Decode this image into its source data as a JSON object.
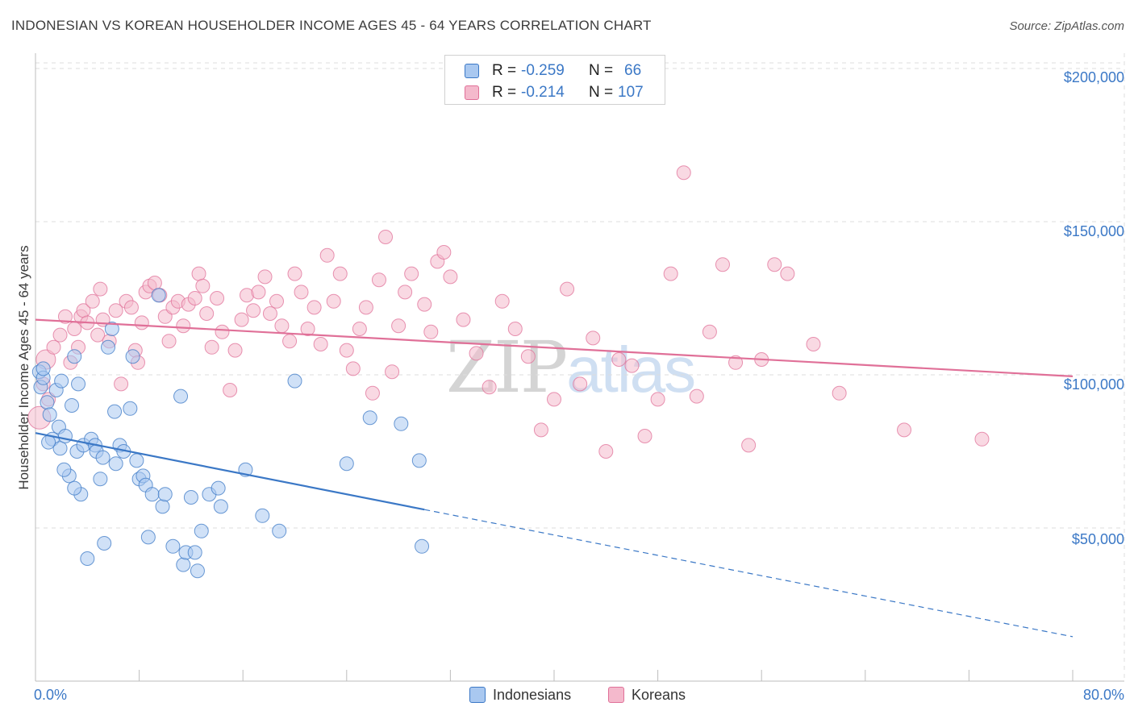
{
  "title": "INDONESIAN VS KOREAN HOUSEHOLDER INCOME AGES 45 - 64 YEARS CORRELATION CHART",
  "source": "Source: ZipAtlas.com",
  "watermark": {
    "zip": "ZIP",
    "atlas": "atlas"
  },
  "stats": {
    "indonesians": {
      "r_label": "R =",
      "r": "-0.259",
      "n_label": "N =",
      "n": "66",
      "color": "#a9c8f0"
    },
    "koreans": {
      "r_label": "R =",
      "r": "-0.214",
      "n_label": "N =",
      "n": "107",
      "color": "#f4b9cc"
    }
  },
  "legend": {
    "indonesians": "Indonesians",
    "koreans": "Koreans"
  },
  "chart_data": {
    "type": "scatter",
    "title": "INDONESIAN VS KOREAN HOUSEHOLDER INCOME AGES 45 - 64 YEARS CORRELATION CHART",
    "xlabel": "",
    "ylabel": "Householder Income Ages 45 - 64 years",
    "xlim": [
      0,
      80
    ],
    "ylim": [
      0,
      205000
    ],
    "x_tick_labels": [
      "0.0%",
      "80.0%"
    ],
    "y_tick_values": [
      50000,
      100000,
      150000,
      200000
    ],
    "y_tick_labels": [
      "$50,000",
      "$100,000",
      "$150,000",
      "$200,000"
    ],
    "grid": true,
    "colors": {
      "indonesians": "#3b78c6",
      "koreans": "#e07098",
      "indonesians_fill": "#a9c8f0",
      "koreans_fill": "#f4b9cc"
    },
    "series": [
      {
        "name": "Indonesians",
        "trend": {
          "x0": 0,
          "y0": 81000,
          "x1": 30,
          "y1": 56000,
          "dashed_to_x": 80,
          "dashed_to_y": 14500
        },
        "points": [
          [
            0.3,
            101000
          ],
          [
            0.4,
            96000
          ],
          [
            0.6,
            99000
          ],
          [
            0.6,
            102000
          ],
          [
            0.9,
            91000
          ],
          [
            1.1,
            87000
          ],
          [
            1.3,
            79000
          ],
          [
            1.6,
            95000
          ],
          [
            1.8,
            83000
          ],
          [
            1.9,
            76000
          ],
          [
            2.0,
            98000
          ],
          [
            2.3,
            80000
          ],
          [
            2.6,
            67000
          ],
          [
            2.8,
            90000
          ],
          [
            3.0,
            106000
          ],
          [
            3.2,
            75000
          ],
          [
            3.5,
            61000
          ],
          [
            3.7,
            77000
          ],
          [
            4.3,
            79000
          ],
          [
            4.6,
            77000
          ],
          [
            4.7,
            75000
          ],
          [
            5.0,
            66000
          ],
          [
            5.2,
            73000
          ],
          [
            5.3,
            45000
          ],
          [
            5.6,
            109000
          ],
          [
            5.9,
            115000
          ],
          [
            6.1,
            88000
          ],
          [
            6.2,
            71000
          ],
          [
            6.5,
            77000
          ],
          [
            6.8,
            75000
          ],
          [
            7.3,
            89000
          ],
          [
            7.5,
            106000
          ],
          [
            7.8,
            72000
          ],
          [
            8.0,
            66000
          ],
          [
            8.3,
            67000
          ],
          [
            8.5,
            64000
          ],
          [
            8.7,
            47000
          ],
          [
            9.0,
            61000
          ],
          [
            9.5,
            126000
          ],
          [
            9.8,
            57000
          ],
          [
            10.0,
            61000
          ],
          [
            10.6,
            44000
          ],
          [
            11.2,
            93000
          ],
          [
            11.4,
            38000
          ],
          [
            11.6,
            42000
          ],
          [
            12.0,
            60000
          ],
          [
            12.3,
            42000
          ],
          [
            12.5,
            36000
          ],
          [
            13.4,
            61000
          ],
          [
            14.1,
            63000
          ],
          [
            12.8,
            49000
          ],
          [
            14.3,
            57000
          ],
          [
            16.2,
            69000
          ],
          [
            17.5,
            54000
          ],
          [
            18.8,
            49000
          ],
          [
            20.0,
            98000
          ],
          [
            24.0,
            71000
          ],
          [
            25.8,
            86000
          ],
          [
            28.2,
            84000
          ],
          [
            29.6,
            72000
          ],
          [
            29.8,
            44000
          ],
          [
            1.0,
            78000
          ],
          [
            2.2,
            69000
          ],
          [
            3.0,
            63000
          ],
          [
            4.0,
            40000
          ],
          [
            3.3,
            97000
          ]
        ]
      },
      {
        "name": "Koreans",
        "trend": {
          "x0": 0,
          "y0": 118000,
          "x1": 80,
          "y1": 99500
        },
        "points": [
          [
            0.3,
            86000
          ],
          [
            0.6,
            97000
          ],
          [
            0.8,
            105000
          ],
          [
            1.0,
            92000
          ],
          [
            1.4,
            109000
          ],
          [
            1.9,
            113000
          ],
          [
            2.3,
            119000
          ],
          [
            2.7,
            104000
          ],
          [
            3.0,
            115000
          ],
          [
            3.3,
            109000
          ],
          [
            3.5,
            119000
          ],
          [
            3.7,
            121000
          ],
          [
            4.0,
            117000
          ],
          [
            4.4,
            124000
          ],
          [
            4.8,
            113000
          ],
          [
            5.0,
            128000
          ],
          [
            5.2,
            118000
          ],
          [
            5.7,
            111000
          ],
          [
            6.2,
            121000
          ],
          [
            6.6,
            97000
          ],
          [
            7.0,
            124000
          ],
          [
            7.4,
            122000
          ],
          [
            7.7,
            108000
          ],
          [
            7.9,
            104000
          ],
          [
            8.2,
            117000
          ],
          [
            8.5,
            127000
          ],
          [
            8.8,
            129000
          ],
          [
            9.2,
            130000
          ],
          [
            9.6,
            126000
          ],
          [
            10.0,
            119000
          ],
          [
            10.3,
            111000
          ],
          [
            10.6,
            122000
          ],
          [
            11.0,
            124000
          ],
          [
            11.4,
            116000
          ],
          [
            11.8,
            123000
          ],
          [
            12.3,
            125000
          ],
          [
            12.6,
            133000
          ],
          [
            12.9,
            129000
          ],
          [
            13.2,
            120000
          ],
          [
            13.6,
            109000
          ],
          [
            14.0,
            125000
          ],
          [
            14.4,
            114000
          ],
          [
            15.0,
            95000
          ],
          [
            15.4,
            108000
          ],
          [
            15.9,
            118000
          ],
          [
            16.3,
            126000
          ],
          [
            16.8,
            121000
          ],
          [
            17.2,
            127000
          ],
          [
            17.7,
            132000
          ],
          [
            18.1,
            120000
          ],
          [
            18.6,
            124000
          ],
          [
            19.0,
            116000
          ],
          [
            19.6,
            111000
          ],
          [
            20.0,
            133000
          ],
          [
            20.5,
            127000
          ],
          [
            21.0,
            115000
          ],
          [
            21.5,
            122000
          ],
          [
            22.0,
            110000
          ],
          [
            22.5,
            139000
          ],
          [
            23.0,
            124000
          ],
          [
            23.5,
            133000
          ],
          [
            24.0,
            108000
          ],
          [
            24.5,
            102000
          ],
          [
            25.0,
            115000
          ],
          [
            25.5,
            122000
          ],
          [
            26.0,
            94000
          ],
          [
            26.5,
            131000
          ],
          [
            27.0,
            145000
          ],
          [
            27.5,
            101000
          ],
          [
            28.0,
            116000
          ],
          [
            28.5,
            127000
          ],
          [
            29.0,
            133000
          ],
          [
            30.0,
            123000
          ],
          [
            30.5,
            114000
          ],
          [
            31.0,
            137000
          ],
          [
            31.5,
            140000
          ],
          [
            32.0,
            132000
          ],
          [
            33.0,
            118000
          ],
          [
            34.0,
            107000
          ],
          [
            35.0,
            96000
          ],
          [
            36.0,
            124000
          ],
          [
            37.0,
            115000
          ],
          [
            38.0,
            106000
          ],
          [
            39.0,
            82000
          ],
          [
            40.0,
            92000
          ],
          [
            41.0,
            128000
          ],
          [
            42.0,
            97000
          ],
          [
            43.0,
            112000
          ],
          [
            44.0,
            75000
          ],
          [
            45.0,
            105000
          ],
          [
            46.0,
            103000
          ],
          [
            47.0,
            80000
          ],
          [
            48.0,
            92000
          ],
          [
            49.0,
            133000
          ],
          [
            50.0,
            166000
          ],
          [
            51.0,
            93000
          ],
          [
            52.0,
            114000
          ],
          [
            53.0,
            136000
          ],
          [
            54.0,
            104000
          ],
          [
            55.0,
            77000
          ],
          [
            56.0,
            105000
          ],
          [
            57.0,
            136000
          ],
          [
            58.0,
            133000
          ],
          [
            60.0,
            110000
          ],
          [
            62.0,
            94000
          ],
          [
            67.0,
            82000
          ],
          [
            73.0,
            79000
          ]
        ]
      }
    ]
  }
}
